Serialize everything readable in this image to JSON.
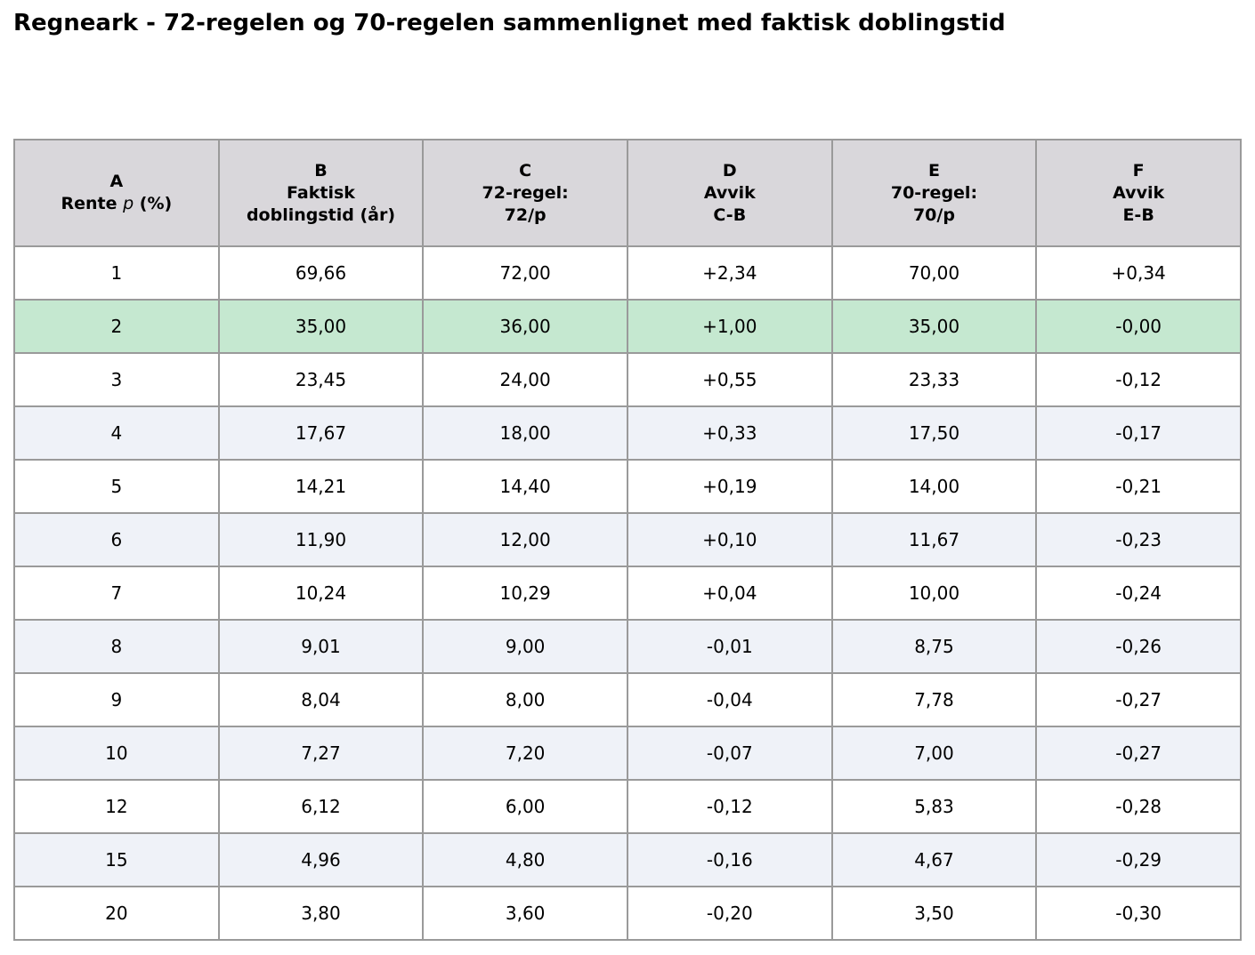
{
  "title": "Regneark - 72-regelen og 70-regelen sammenlignet med faktisk doblingstid",
  "colors": {
    "header_bg": "#d9d7db",
    "row_alt_bg": "#eff2f8",
    "row_highlight_bg": "#c5e8d0",
    "grid_line": "#9a9a9a"
  },
  "columns": [
    {
      "letter": "A",
      "line1_pre": "Rente ",
      "line1_var": "p",
      "line1_post": " (%)",
      "line2": ""
    },
    {
      "letter": "B",
      "line1": "Faktisk",
      "line2": "doblingstid (år)"
    },
    {
      "letter": "C",
      "line1": "72-regel:",
      "line2": "72/p"
    },
    {
      "letter": "D",
      "line1": "Avvik",
      "line2": "C-B"
    },
    {
      "letter": "E",
      "line1": "70-regel:",
      "line2": "70/p"
    },
    {
      "letter": "F",
      "line1": "Avvik",
      "line2": "E-B"
    }
  ],
  "rows": [
    {
      "style": "white",
      "cells": [
        "1",
        "69,66",
        "72,00",
        "+2,34",
        "70,00",
        "+0,34"
      ]
    },
    {
      "style": "highlight",
      "cells": [
        "2",
        "35,00",
        "36,00",
        "+1,00",
        "35,00",
        "-0,00"
      ]
    },
    {
      "style": "white",
      "cells": [
        "3",
        "23,45",
        "24,00",
        "+0,55",
        "23,33",
        "-0,12"
      ]
    },
    {
      "style": "alt",
      "cells": [
        "4",
        "17,67",
        "18,00",
        "+0,33",
        "17,50",
        "-0,17"
      ]
    },
    {
      "style": "white",
      "cells": [
        "5",
        "14,21",
        "14,40",
        "+0,19",
        "14,00",
        "-0,21"
      ]
    },
    {
      "style": "alt",
      "cells": [
        "6",
        "11,90",
        "12,00",
        "+0,10",
        "11,67",
        "-0,23"
      ]
    },
    {
      "style": "white",
      "cells": [
        "7",
        "10,24",
        "10,29",
        "+0,04",
        "10,00",
        "-0,24"
      ]
    },
    {
      "style": "alt",
      "cells": [
        "8",
        "9,01",
        "9,00",
        "-0,01",
        "8,75",
        "-0,26"
      ]
    },
    {
      "style": "white",
      "cells": [
        "9",
        "8,04",
        "8,00",
        "-0,04",
        "7,78",
        "-0,27"
      ]
    },
    {
      "style": "alt",
      "cells": [
        "10",
        "7,27",
        "7,20",
        "-0,07",
        "7,00",
        "-0,27"
      ]
    },
    {
      "style": "white",
      "cells": [
        "12",
        "6,12",
        "6,00",
        "-0,12",
        "5,83",
        "-0,28"
      ]
    },
    {
      "style": "alt",
      "cells": [
        "15",
        "4,96",
        "4,80",
        "-0,16",
        "4,67",
        "-0,29"
      ]
    },
    {
      "style": "white",
      "cells": [
        "20",
        "3,80",
        "3,60",
        "-0,20",
        "3,50",
        "-0,30"
      ]
    }
  ]
}
